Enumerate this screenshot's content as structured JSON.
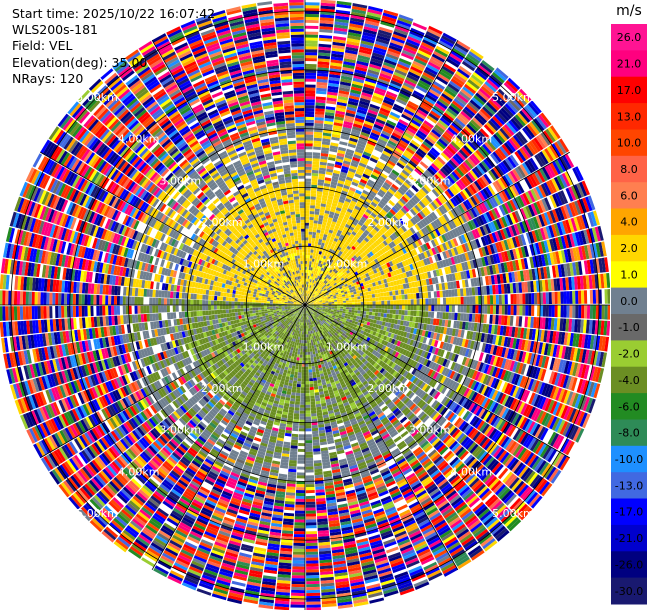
{
  "header": {
    "start_time": "Start time: 2025/10/22 16:07:42",
    "instrument": "WLS200s-181",
    "field": "Field: VEL",
    "elevation": "Elevation(deg): 35.00",
    "nrays": "NRays: 120"
  },
  "range_labels": [
    "1.00km",
    "2.00km",
    "3.00km",
    "4.00km",
    "5.00km"
  ],
  "colorbar": {
    "unit": "m/s",
    "ticks": [
      "26.0",
      "21.0",
      "17.0",
      "13.0",
      "10.0",
      "8.0",
      "6.0",
      "4.0",
      "2.0",
      "1.0",
      "0.0",
      "-1.0",
      "-2.0",
      "-4.0",
      "-6.0",
      "-8.0",
      "-10.0",
      "-13.0",
      "-17.0",
      "-21.0",
      "-26.0",
      "-30.0"
    ],
    "colors": [
      "#ff1493",
      "#ff007f",
      "#ff0000",
      "#ff2800",
      "#ff4500",
      "#ff6347",
      "#ff7f50",
      "#ffa500",
      "#ffd700",
      "#ffff00",
      "#708090",
      "#696969",
      "#9acd32",
      "#6b8e23",
      "#228b22",
      "#2e8b57",
      "#1e90ff",
      "#4169e1",
      "#0000ff",
      "#0000cd",
      "#000080",
      "#191970"
    ]
  },
  "chart_data": {
    "type": "heatmap",
    "projection": "PPI (polar)",
    "field": "VEL",
    "units": "m/s",
    "elevation_deg": 35.0,
    "n_rays": 120,
    "max_range_km": 5.2,
    "range_rings_km": [
      1,
      2,
      3,
      4,
      5
    ],
    "velocity_pattern": {
      "near_range_km": [
        0,
        2.2
      ],
      "north_half_velocity": "approx +2 to +4 m/s (yellow)",
      "south_half_velocity": "approx -1 to -4 m/s (green)",
      "beyond_3km": "noise spanning -30 to 26 m/s"
    },
    "color_scale": {
      "boundaries": [
        -30,
        -26,
        -21,
        -17,
        -13,
        -10,
        -8,
        -6,
        -4,
        -2,
        -1,
        0,
        1,
        2,
        4,
        6,
        8,
        10,
        13,
        17,
        21,
        26
      ]
    }
  }
}
